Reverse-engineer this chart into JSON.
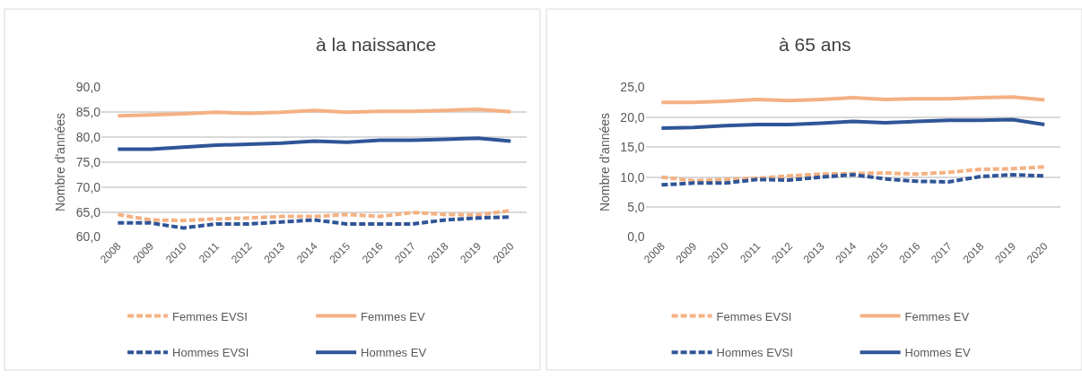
{
  "chart_data": [
    {
      "type": "line",
      "title": "à la naissance",
      "ylabel": "Nombre d'années",
      "categories": [
        "2008",
        "2009",
        "2010",
        "2011",
        "2012",
        "2013",
        "2014",
        "2015",
        "2016",
        "2017",
        "2018",
        "2019",
        "2020"
      ],
      "ylim": [
        60,
        90
      ],
      "yticks": [
        {
          "value": 60,
          "label": "60,0"
        },
        {
          "value": 65,
          "label": "65,0"
        },
        {
          "value": 70,
          "label": "70,0"
        },
        {
          "value": 75,
          "label": "75,0"
        },
        {
          "value": 80,
          "label": "80,0"
        },
        {
          "value": 85,
          "label": "85,0"
        },
        {
          "value": 90,
          "label": "90,0"
        }
      ],
      "grid": "y",
      "legend": "bottom",
      "marker": "none",
      "series": [
        {
          "name": "Femmes EVSI",
          "color": "#f4b183",
          "line_style": "dashed",
          "values": [
            64.5,
            63.4,
            63.3,
            63.6,
            63.8,
            64.1,
            64.1,
            64.5,
            64.1,
            64.9,
            64.5,
            64.4,
            65.3
          ]
        },
        {
          "name": "Femmes EV",
          "color": "#f4b183",
          "line_style": "solid",
          "values": [
            84.3,
            84.5,
            84.7,
            85.0,
            84.8,
            85.0,
            85.4,
            85.0,
            85.2,
            85.2,
            85.4,
            85.6,
            85.1
          ]
        },
        {
          "name": "Hommes EVSI",
          "color": "#2f5597",
          "line_style": "dashed",
          "values": [
            62.8,
            62.8,
            61.8,
            62.6,
            62.6,
            63.0,
            63.4,
            62.6,
            62.6,
            62.6,
            63.4,
            63.8,
            64.0
          ]
        },
        {
          "name": "Hommes EV",
          "color": "#2f5597",
          "line_style": "solid",
          "values": [
            77.6,
            77.6,
            78.0,
            78.4,
            78.6,
            78.8,
            79.2,
            79.0,
            79.4,
            79.4,
            79.6,
            79.8,
            79.2
          ]
        }
      ]
    },
    {
      "type": "line",
      "title": "à 65 ans",
      "ylabel": "Nombre d'années",
      "categories": [
        "2008",
        "2009",
        "2010",
        "2011",
        "2012",
        "2013",
        "2014",
        "2015",
        "2016",
        "2017",
        "2018",
        "2019",
        "2020"
      ],
      "ylim": [
        0,
        25
      ],
      "yticks": [
        {
          "value": 0,
          "label": "0,0"
        },
        {
          "value": 5,
          "label": "5,0"
        },
        {
          "value": 10,
          "label": "10,0"
        },
        {
          "value": 15,
          "label": "15,0"
        },
        {
          "value": 20,
          "label": "20,0"
        },
        {
          "value": 25,
          "label": "25,0"
        }
      ],
      "grid": "y",
      "legend": "bottom",
      "marker": "none",
      "series": [
        {
          "name": "Femmes EVSI",
          "color": "#f4b183",
          "line_style": "dashed",
          "values": [
            10.0,
            9.4,
            9.6,
            9.8,
            10.2,
            10.5,
            10.6,
            10.7,
            10.5,
            10.8,
            11.3,
            11.4,
            11.7
          ]
        },
        {
          "name": "Femmes EV",
          "color": "#f4b183",
          "line_style": "solid",
          "values": [
            22.5,
            22.5,
            22.7,
            23.0,
            22.8,
            23.0,
            23.3,
            23.0,
            23.1,
            23.1,
            23.3,
            23.4,
            22.9
          ]
        },
        {
          "name": "Hommes EVSI",
          "color": "#2f5597",
          "line_style": "dashed",
          "values": [
            8.7,
            9.0,
            9.0,
            9.6,
            9.5,
            10.0,
            10.4,
            9.7,
            9.3,
            9.2,
            10.1,
            10.4,
            10.2
          ]
        },
        {
          "name": "Hommes EV",
          "color": "#2f5597",
          "line_style": "solid",
          "values": [
            18.2,
            18.3,
            18.6,
            18.8,
            18.8,
            19.0,
            19.3,
            19.1,
            19.3,
            19.5,
            19.5,
            19.6,
            18.8
          ]
        }
      ]
    }
  ]
}
